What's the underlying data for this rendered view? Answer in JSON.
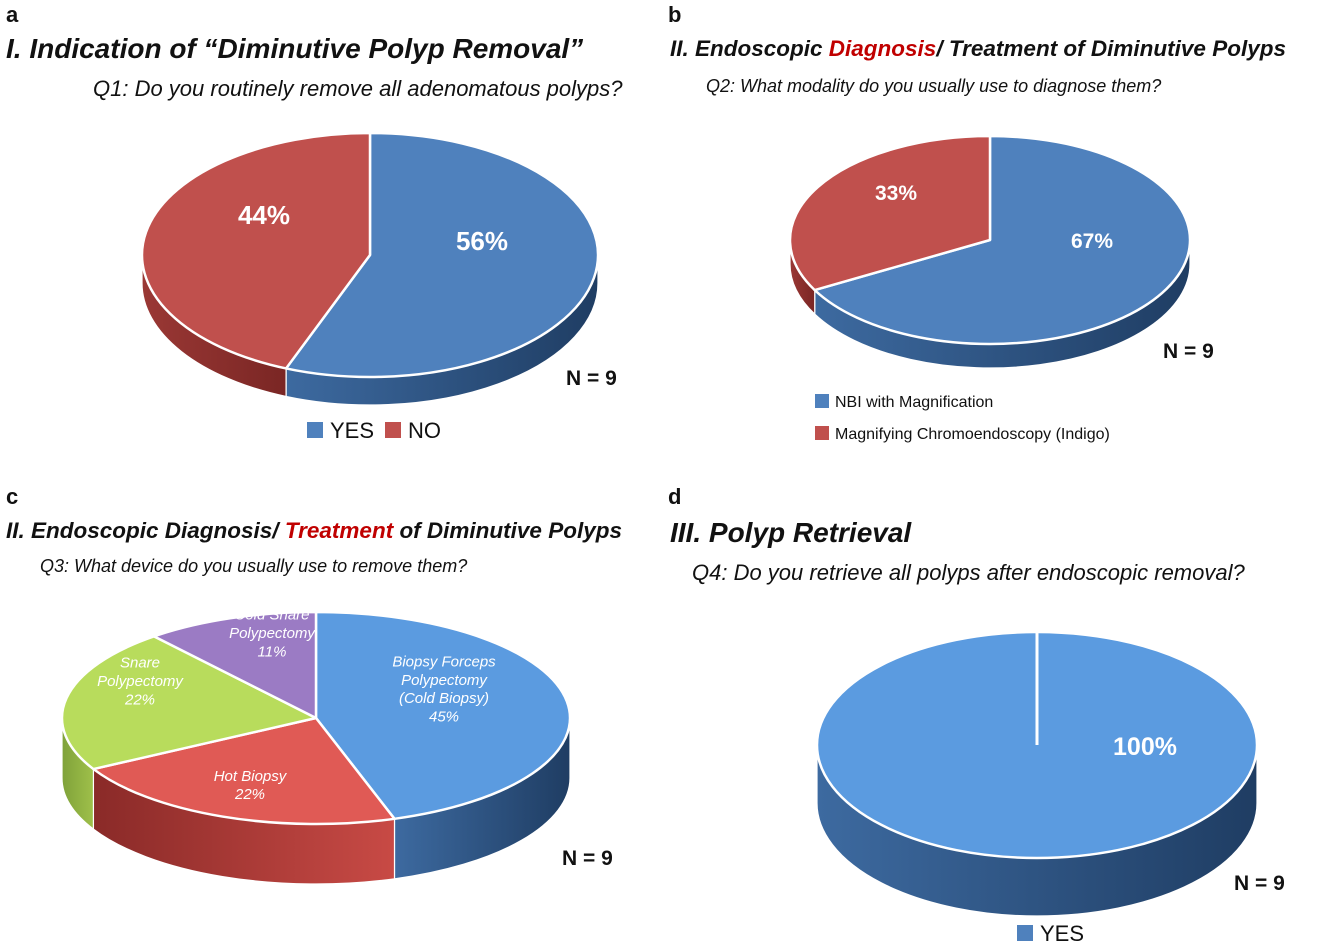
{
  "panels": [
    {
      "letter": "a",
      "title_parts": [
        {
          "text": "I. Indication of “Diminutive Polyp Removal”",
          "color": "#111111"
        }
      ],
      "question": "Q1: Do you routinely remove all adenomatous polyps?",
      "n_label": "N = 9",
      "legend": [
        {
          "label": "YES",
          "color": "#4F81BD"
        },
        {
          "label": "NO",
          "color": "#C0504D"
        }
      ]
    },
    {
      "letter": "b",
      "title_parts": [
        {
          "text": "II. Endoscopic ",
          "color": "#111111"
        },
        {
          "text": "Diagnosis",
          "color": "#C00000"
        },
        {
          "text": "/ Treatment of Diminutive Polyps",
          "color": "#111111"
        }
      ],
      "question": "Q2: What modality do you usually use to diagnose them?",
      "n_label": "N = 9",
      "legend": [
        {
          "label": "NBI with Magnification",
          "color": "#4F81BD"
        },
        {
          "label": "Magnifying Chromoendoscopy (Indigo)",
          "color": "#C0504D"
        }
      ]
    },
    {
      "letter": "c",
      "title_parts": [
        {
          "text": "II. Endoscopic Diagnosis/ ",
          "color": "#111111"
        },
        {
          "text": "Treatment",
          "color": "#C00000"
        },
        {
          "text": " of Diminutive Polyps",
          "color": "#111111"
        }
      ],
      "question": "Q3: What device do you usually use to remove them?",
      "n_label": "N = 9",
      "legend": []
    },
    {
      "letter": "d",
      "title_parts": [
        {
          "text": "III. Polyp Retrieval",
          "color": "#111111"
        }
      ],
      "question": "Q4: Do you retrieve all polyps after endoscopic removal?",
      "n_label": "N = 9",
      "legend": [
        {
          "label": "YES",
          "color": "#4F81BD"
        }
      ]
    }
  ],
  "chart_data": [
    {
      "type": "pie",
      "title": "I. Indication of “Diminutive Polyp Removal”",
      "subtitle": "Q1: Do you routinely remove all adenomatous polyps?",
      "categories": [
        "YES",
        "NO"
      ],
      "values": [
        56,
        44
      ],
      "slice_labels": [
        [
          "56%"
        ],
        [
          "44%"
        ]
      ],
      "colors": [
        "#4F81BD",
        "#C0504D"
      ],
      "style": "3d",
      "legend_position": "bottom"
    },
    {
      "type": "pie",
      "title": "II. Endoscopic Diagnosis/ Treatment of Diminutive Polyps",
      "subtitle": "Q2: What modality do you usually use to diagnose them?",
      "categories": [
        "NBI with Magnification",
        "Magnifying Chromoendoscopy (Indigo)"
      ],
      "values": [
        67,
        33
      ],
      "slice_labels": [
        [
          "67%"
        ],
        [
          "33%"
        ]
      ],
      "colors": [
        "#4F81BD",
        "#C0504D"
      ],
      "style": "3d",
      "legend_position": "bottom-left"
    },
    {
      "type": "pie",
      "title": "II. Endoscopic Diagnosis/ Treatment of Diminutive Polyps",
      "subtitle": "Q3: What device do you usually use to remove them?",
      "categories": [
        "Biopsy Forceps Polypectomy (Cold Biopsy)",
        "Hot Biopsy",
        "Snare Polypectomy",
        "Cold Snare Polypectomy"
      ],
      "values": [
        45,
        22,
        22,
        11
      ],
      "slice_labels": [
        [
          "Biopsy Forceps",
          "Polypectomy",
          "(Cold Biopsy)",
          "45%"
        ],
        [
          "Hot Biopsy",
          "22%"
        ],
        [
          "Snare",
          "Polypectomy",
          "22%"
        ],
        [
          "Cold Snare",
          "Polypectomy",
          "11%"
        ]
      ],
      "colors": [
        "#5B9BE0",
        "#E05A55",
        "#B8DC5C",
        "#9B7BC4"
      ],
      "style": "3d"
    },
    {
      "type": "pie",
      "title": "III. Polyp Retrieval",
      "subtitle": "Q4: Do you retrieve all polyps after endoscopic removal?",
      "categories": [
        "YES"
      ],
      "values": [
        100
      ],
      "slice_labels": [
        [
          "100%"
        ]
      ],
      "colors": [
        "#5B9BE0"
      ],
      "style": "3d",
      "legend_position": "bottom"
    }
  ]
}
